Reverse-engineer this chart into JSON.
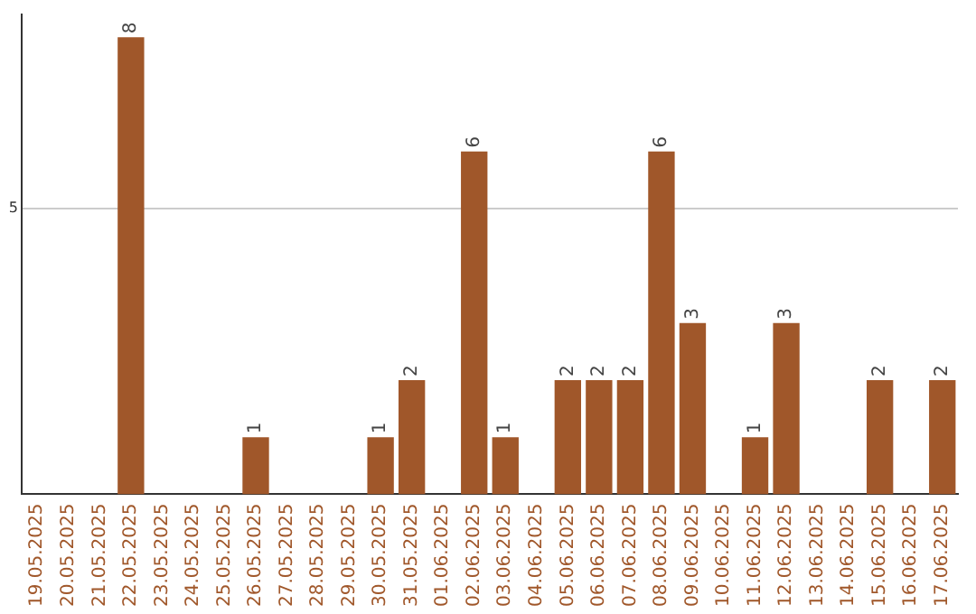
{
  "chart_data": {
    "type": "bar",
    "categories": [
      "19.05.2025",
      "20.05.2025",
      "21.05.2025",
      "22.05.2025",
      "23.05.2025",
      "24.05.2025",
      "25.05.2025",
      "26.05.2025",
      "27.05.2025",
      "28.05.2025",
      "29.05.2025",
      "30.05.2025",
      "31.05.2025",
      "01.06.2025",
      "02.06.2025",
      "03.06.2025",
      "04.06.2025",
      "05.06.2025",
      "06.06.2025",
      "07.06.2025",
      "08.06.2025",
      "09.06.2025",
      "10.06.2025",
      "11.06.2025",
      "12.06.2025",
      "13.06.2025",
      "14.06.2025",
      "15.06.2025",
      "16.06.2025",
      "17.06.2025"
    ],
    "values": [
      0,
      0,
      0,
      8,
      0,
      0,
      0,
      1,
      0,
      0,
      0,
      1,
      2,
      0,
      6,
      1,
      0,
      2,
      2,
      2,
      6,
      3,
      0,
      1,
      3,
      0,
      0,
      2,
      0,
      2
    ],
    "value_labels": [
      null,
      null,
      null,
      "8",
      null,
      null,
      null,
      "1",
      null,
      null,
      null,
      "1",
      "2",
      null,
      "6",
      "1",
      null,
      "2",
      "2",
      "2",
      "6",
      "3",
      null,
      "1",
      "3",
      null,
      null,
      "2",
      null,
      "2"
    ],
    "color": "#a0572a",
    "ylim": [
      0,
      8.4
    ],
    "yticks": [
      5
    ],
    "grid": "y",
    "legend": false
  }
}
